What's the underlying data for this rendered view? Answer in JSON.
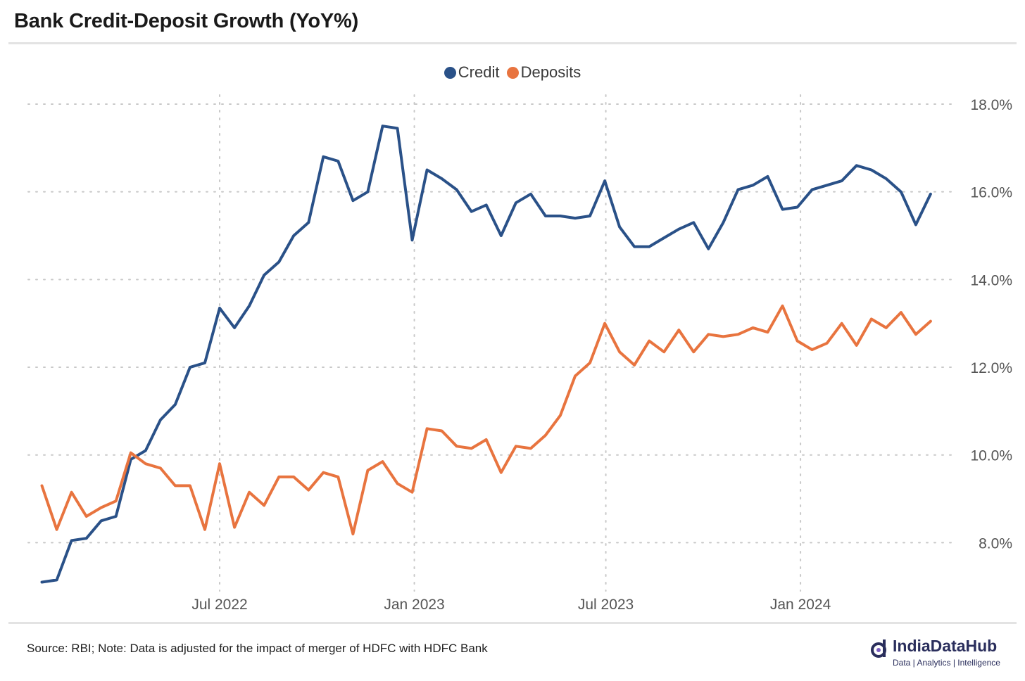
{
  "title": "Bank Credit-Deposit Growth (YoY%)",
  "source_note": "Source: RBI; Note: Data is adjusted for the impact of merger of HDFC with HDFC Bank",
  "logo": {
    "name": "IndiaDataHub",
    "tagline": "Data | Analytics | Intelligence"
  },
  "colors": {
    "credit": "#2a5188",
    "deposits": "#e8743f",
    "grid": "#c8c8c8",
    "axis_text": "#555555"
  },
  "chart_data": {
    "type": "line",
    "title": "Bank Credit-Deposit Growth (YoY%)",
    "xlabel": "",
    "ylabel": "",
    "x_tick_labels": [
      "Jul 2022",
      "Jan 2023",
      "Jul 2023",
      "Jan 2024"
    ],
    "y_tick_labels": [
      "8.0%",
      "10.0%",
      "12.0%",
      "14.0%",
      "16.0%",
      "18.0%"
    ],
    "ylim": [
      6.9,
      18.0
    ],
    "y_ticks": [
      8,
      10,
      12,
      14,
      16,
      18
    ],
    "x_ticks": [
      "2022-07-01",
      "2023-01-01",
      "2023-07-01",
      "2024-01-01"
    ],
    "xlim": [
      "2022-01-01",
      "2024-05-25"
    ],
    "grid": true,
    "legend_position": "top-center",
    "x": [
      "2022-01-14",
      "2022-01-28",
      "2022-02-11",
      "2022-02-25",
      "2022-03-11",
      "2022-03-25",
      "2022-04-08",
      "2022-04-22",
      "2022-05-06",
      "2022-05-20",
      "2022-06-03",
      "2022-06-17",
      "2022-07-01",
      "2022-07-15",
      "2022-07-29",
      "2022-08-12",
      "2022-08-26",
      "2022-09-09",
      "2022-09-23",
      "2022-10-07",
      "2022-10-21",
      "2022-11-04",
      "2022-11-18",
      "2022-12-02",
      "2022-12-16",
      "2022-12-30",
      "2023-01-13",
      "2023-01-27",
      "2023-02-10",
      "2023-02-24",
      "2023-03-10",
      "2023-03-24",
      "2023-04-07",
      "2023-04-21",
      "2023-05-05",
      "2023-05-19",
      "2023-06-02",
      "2023-06-16",
      "2023-06-30",
      "2023-07-14",
      "2023-07-28",
      "2023-08-11",
      "2023-08-25",
      "2023-09-08",
      "2023-09-22",
      "2023-10-06",
      "2023-10-20",
      "2023-11-03",
      "2023-11-17",
      "2023-12-01",
      "2023-12-15",
      "2023-12-29",
      "2024-01-12",
      "2024-01-26",
      "2024-02-09",
      "2024-02-23",
      "2024-03-08",
      "2024-03-22",
      "2024-04-05",
      "2024-04-19",
      "2024-05-03"
    ],
    "series": [
      {
        "name": "Credit",
        "values": [
          7.1,
          7.15,
          8.05,
          8.1,
          8.5,
          8.6,
          9.9,
          10.1,
          10.8,
          11.15,
          12.0,
          12.1,
          13.35,
          12.9,
          13.4,
          14.1,
          14.4,
          15.0,
          15.3,
          16.8,
          16.7,
          15.8,
          16.0,
          17.5,
          17.45,
          14.9,
          16.5,
          16.3,
          16.05,
          15.55,
          15.7,
          15.0,
          15.75,
          15.95,
          15.45,
          15.45,
          15.4,
          15.45,
          16.25,
          15.2,
          14.75,
          14.75,
          14.95,
          15.15,
          15.3,
          14.7,
          15.3,
          16.05,
          16.15,
          16.35,
          15.6,
          15.65,
          16.05,
          16.15,
          16.25,
          16.6,
          16.5,
          16.3,
          16.0,
          15.25,
          15.95
        ]
      },
      {
        "name": "Deposits",
        "values": [
          9.3,
          8.3,
          9.15,
          8.6,
          8.8,
          8.95,
          10.05,
          9.8,
          9.7,
          9.3,
          9.3,
          8.3,
          9.8,
          8.35,
          9.15,
          8.85,
          9.5,
          9.5,
          9.2,
          9.6,
          9.5,
          8.2,
          9.65,
          9.85,
          9.35,
          9.15,
          10.6,
          10.55,
          10.2,
          10.15,
          10.35,
          9.6,
          10.2,
          10.15,
          10.45,
          10.9,
          11.8,
          12.1,
          13.0,
          12.35,
          12.05,
          12.6,
          12.35,
          12.85,
          12.35,
          12.75,
          12.7,
          12.75,
          12.9,
          12.8,
          13.4,
          12.6,
          12.4,
          12.55,
          13.0,
          12.5,
          13.1,
          12.9,
          13.25,
          12.75,
          13.05
        ]
      }
    ]
  }
}
